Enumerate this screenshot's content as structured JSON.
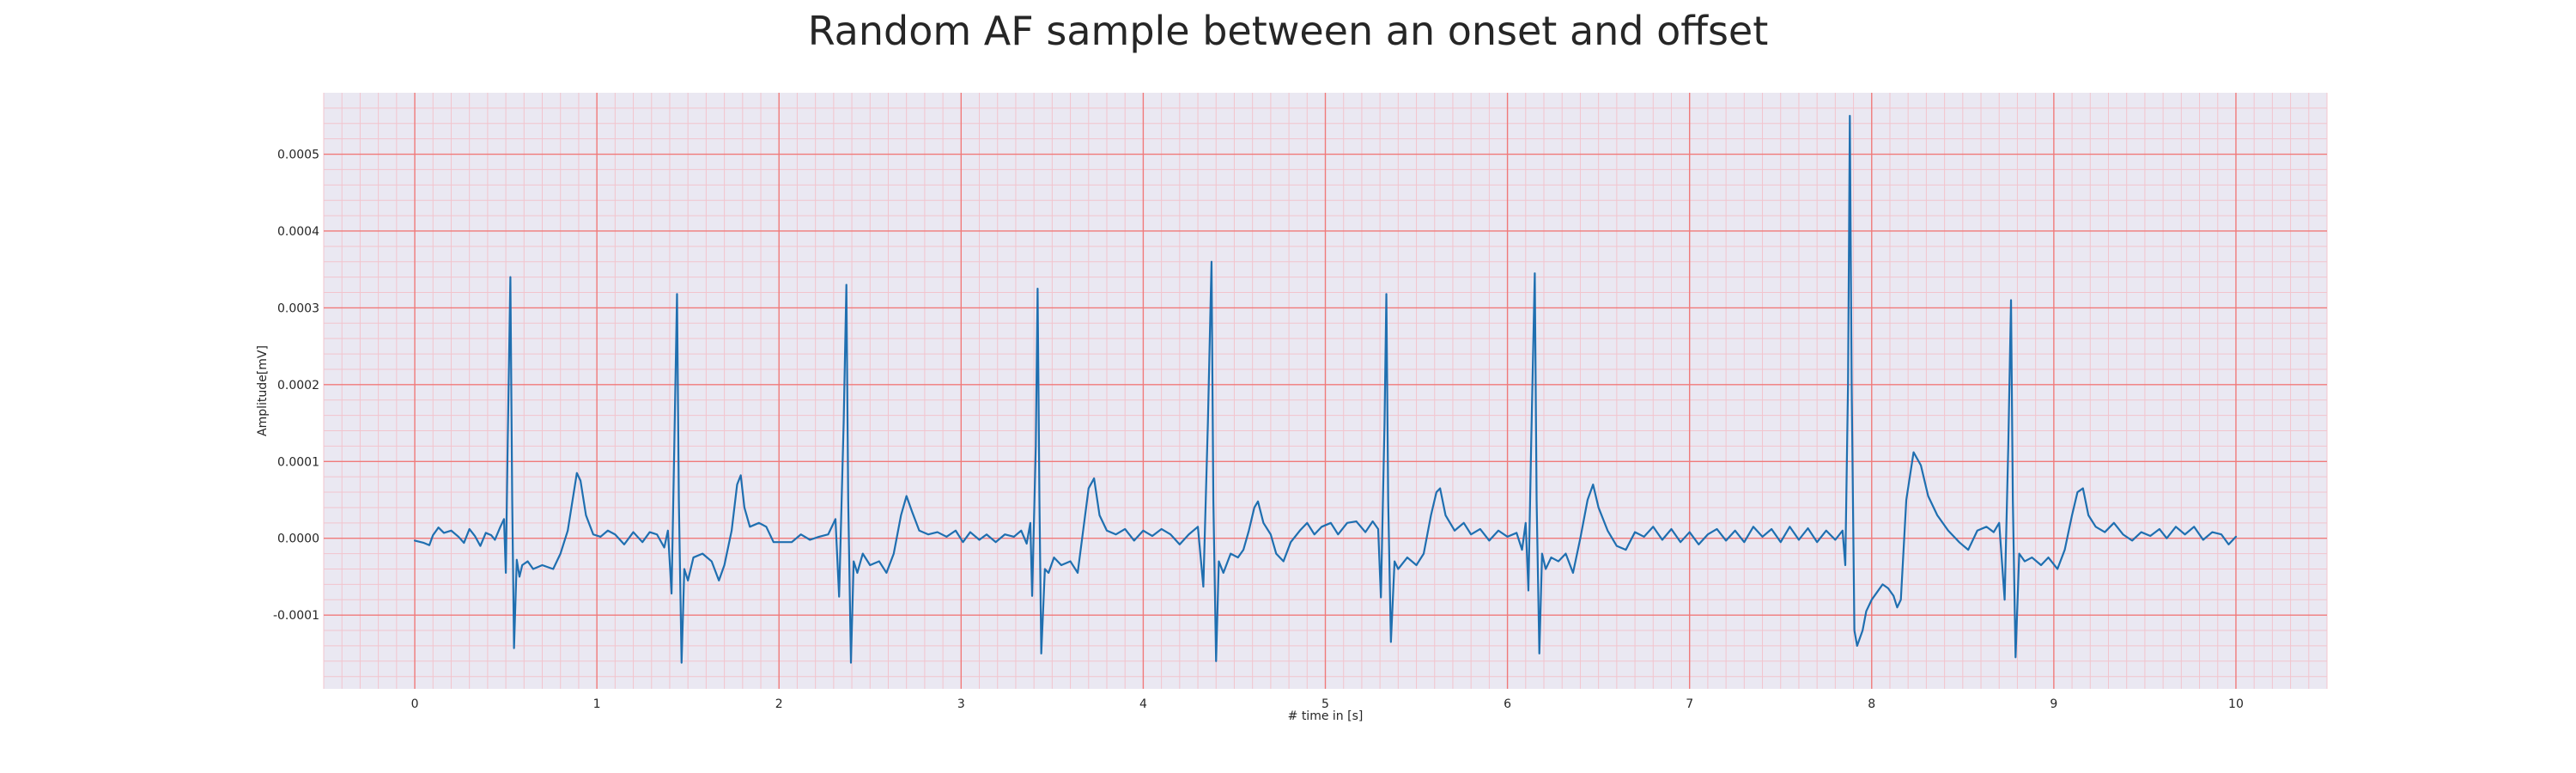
{
  "chart_data": {
    "type": "line",
    "title": "Random AF sample between an onset and offset",
    "xlabel": "# time in [s]",
    "ylabel": "Amplitude[mV]",
    "xlim": [
      -0.5,
      10.5
    ],
    "ylim": [
      -0.000196,
      0.00058
    ],
    "x_ticks": [
      0,
      1,
      2,
      3,
      4,
      5,
      6,
      7,
      8,
      9,
      10
    ],
    "x_tick_labels": [
      "0",
      "1",
      "2",
      "3",
      "4",
      "5",
      "6",
      "7",
      "8",
      "9",
      "10"
    ],
    "y_ticks": [
      -0.0001,
      0.0,
      0.0001,
      0.0002,
      0.0003,
      0.0004,
      0.0005
    ],
    "y_tick_labels": [
      "-0.0001",
      "0.0000",
      "0.0001",
      "0.0002",
      "0.0003",
      "0.0004",
      "0.0005"
    ],
    "grid": true,
    "legend": "none",
    "colors": {
      "line": "#1f6fb0",
      "plot_background": "#eae8f2",
      "major_grid": "#f07a7a",
      "minor_grid": "#f2c4cd",
      "text": "#262626"
    },
    "series": [
      {
        "values": [
          [
            0.0,
            -3e-06
          ],
          [
            0.05,
            -6e-06
          ],
          [
            0.08,
            -9e-06
          ],
          [
            0.1,
            4e-06
          ],
          [
            0.13,
            1.4e-05
          ],
          [
            0.16,
            7e-06
          ],
          [
            0.2,
            1e-05
          ],
          [
            0.24,
            2e-06
          ],
          [
            0.27,
            -6e-06
          ],
          [
            0.3,
            1.2e-05
          ],
          [
            0.33,
            3e-06
          ],
          [
            0.36,
            -1e-05
          ],
          [
            0.39,
            7e-06
          ],
          [
            0.42,
            4e-06
          ],
          [
            0.44,
            -2e-06
          ],
          [
            0.47,
            1.5e-05
          ],
          [
            0.49,
            2.5e-05
          ],
          [
            0.5,
            -4.5e-05
          ],
          [
            0.51,
            0.00012
          ],
          [
            0.525,
            0.00034
          ],
          [
            0.535,
            5e-05
          ],
          [
            0.545,
            -0.000143
          ],
          [
            0.56,
            -2.8e-05
          ],
          [
            0.575,
            -5e-05
          ],
          [
            0.59,
            -3.5e-05
          ],
          [
            0.62,
            -3e-05
          ],
          [
            0.65,
            -4e-05
          ],
          [
            0.7,
            -3.5e-05
          ],
          [
            0.76,
            -4e-05
          ],
          [
            0.8,
            -2e-05
          ],
          [
            0.84,
            1e-05
          ],
          [
            0.87,
            5.5e-05
          ],
          [
            0.89,
            8.5e-05
          ],
          [
            0.91,
            7.5e-05
          ],
          [
            0.94,
            3e-05
          ],
          [
            0.98,
            5e-06
          ],
          [
            1.02,
            2e-06
          ],
          [
            1.06,
            1e-05
          ],
          [
            1.1,
            5e-06
          ],
          [
            1.15,
            -8e-06
          ],
          [
            1.2,
            8e-06
          ],
          [
            1.25,
            -5e-06
          ],
          [
            1.29,
            8e-06
          ],
          [
            1.33,
            5e-06
          ],
          [
            1.37,
            -1.2e-05
          ],
          [
            1.39,
            1e-05
          ],
          [
            1.41,
            -7.2e-05
          ],
          [
            1.425,
            0.00012
          ],
          [
            1.44,
            0.000318
          ],
          [
            1.45,
            5e-05
          ],
          [
            1.465,
            -0.000162
          ],
          [
            1.48,
            -4e-05
          ],
          [
            1.5,
            -5.5e-05
          ],
          [
            1.53,
            -2.5e-05
          ],
          [
            1.58,
            -2e-05
          ],
          [
            1.63,
            -3e-05
          ],
          [
            1.67,
            -5.5e-05
          ],
          [
            1.7,
            -3.5e-05
          ],
          [
            1.74,
            1e-05
          ],
          [
            1.77,
            7e-05
          ],
          [
            1.79,
            8.2e-05
          ],
          [
            1.81,
            4e-05
          ],
          [
            1.84,
            1.5e-05
          ],
          [
            1.89,
            2e-05
          ],
          [
            1.93,
            1.5e-05
          ],
          [
            1.97,
            -5e-06
          ],
          [
            2.02,
            -5e-06
          ],
          [
            2.07,
            -5e-06
          ],
          [
            2.12,
            5e-06
          ],
          [
            2.17,
            -2e-06
          ],
          [
            2.22,
            2e-06
          ],
          [
            2.27,
            5e-06
          ],
          [
            2.31,
            2.5e-05
          ],
          [
            2.33,
            -7.6e-05
          ],
          [
            2.355,
            0.00015
          ],
          [
            2.37,
            0.00033
          ],
          [
            2.38,
            5e-05
          ],
          [
            2.395,
            -0.000162
          ],
          [
            2.41,
            -3e-05
          ],
          [
            2.43,
            -4.5e-05
          ],
          [
            2.46,
            -2e-05
          ],
          [
            2.5,
            -3.5e-05
          ],
          [
            2.55,
            -3e-05
          ],
          [
            2.59,
            -4.5e-05
          ],
          [
            2.63,
            -2e-05
          ],
          [
            2.67,
            3e-05
          ],
          [
            2.7,
            5.5e-05
          ],
          [
            2.73,
            3.5e-05
          ],
          [
            2.77,
            1e-05
          ],
          [
            2.82,
            5e-06
          ],
          [
            2.87,
            8e-06
          ],
          [
            2.92,
            2e-06
          ],
          [
            2.97,
            1e-05
          ],
          [
            3.01,
            -5e-06
          ],
          [
            3.05,
            8e-06
          ],
          [
            3.1,
            -2e-06
          ],
          [
            3.14,
            5e-06
          ],
          [
            3.19,
            -5e-06
          ],
          [
            3.24,
            5e-06
          ],
          [
            3.29,
            2e-06
          ],
          [
            3.33,
            1e-05
          ],
          [
            3.36,
            -7e-06
          ],
          [
            3.38,
            2e-05
          ],
          [
            3.39,
            -7.5e-05
          ],
          [
            3.41,
            0.00012
          ],
          [
            3.42,
            0.000325
          ],
          [
            3.43,
            5e-05
          ],
          [
            3.44,
            -0.00015
          ],
          [
            3.46,
            -4e-05
          ],
          [
            3.48,
            -4.5e-05
          ],
          [
            3.51,
            -2.5e-05
          ],
          [
            3.55,
            -3.5e-05
          ],
          [
            3.6,
            -3e-05
          ],
          [
            3.64,
            -4.5e-05
          ],
          [
            3.67,
            1e-05
          ],
          [
            3.7,
            6.5e-05
          ],
          [
            3.73,
            7.8e-05
          ],
          [
            3.76,
            3e-05
          ],
          [
            3.8,
            1e-05
          ],
          [
            3.85,
            5e-06
          ],
          [
            3.9,
            1.2e-05
          ],
          [
            3.95,
            -3e-06
          ],
          [
            4.0,
            1e-05
          ],
          [
            4.05,
            3e-06
          ],
          [
            4.1,
            1.2e-05
          ],
          [
            4.15,
            5e-06
          ],
          [
            4.2,
            -8e-06
          ],
          [
            4.25,
            5e-06
          ],
          [
            4.3,
            1.5e-05
          ],
          [
            4.33,
            -6.3e-05
          ],
          [
            4.355,
            0.00015
          ],
          [
            4.375,
            0.00036
          ],
          [
            4.385,
            5e-05
          ],
          [
            4.4,
            -0.00016
          ],
          [
            4.415,
            -3e-05
          ],
          [
            4.44,
            -4.5e-05
          ],
          [
            4.48,
            -2e-05
          ],
          [
            4.52,
            -2.5e-05
          ],
          [
            4.55,
            -1.5e-05
          ],
          [
            4.58,
            1e-05
          ],
          [
            4.61,
            4e-05
          ],
          [
            4.63,
            4.8e-05
          ],
          [
            4.66,
            2e-05
          ],
          [
            4.7,
            5e-06
          ],
          [
            4.73,
            -2e-05
          ],
          [
            4.77,
            -3e-05
          ],
          [
            4.81,
            -5e-06
          ],
          [
            4.86,
            1e-05
          ],
          [
            4.9,
            2e-05
          ],
          [
            4.94,
            5e-06
          ],
          [
            4.98,
            1.5e-05
          ],
          [
            5.03,
            2e-05
          ],
          [
            5.07,
            5e-06
          ],
          [
            5.12,
            2e-05
          ],
          [
            5.17,
            2.2e-05
          ],
          [
            5.22,
            8e-06
          ],
          [
            5.26,
            2.2e-05
          ],
          [
            5.29,
            1.2e-05
          ],
          [
            5.305,
            -7.7e-05
          ],
          [
            5.325,
            0.00015
          ],
          [
            5.335,
            0.000318
          ],
          [
            5.345,
            5e-05
          ],
          [
            5.36,
            -0.000135
          ],
          [
            5.38,
            -3e-05
          ],
          [
            5.4,
            -4e-05
          ],
          [
            5.45,
            -2.5e-05
          ],
          [
            5.5,
            -3.5e-05
          ],
          [
            5.54,
            -2e-05
          ],
          [
            5.58,
            3e-05
          ],
          [
            5.61,
            6e-05
          ],
          [
            5.63,
            6.5e-05
          ],
          [
            5.66,
            3e-05
          ],
          [
            5.71,
            1e-05
          ],
          [
            5.76,
            2e-05
          ],
          [
            5.8,
            5e-06
          ],
          [
            5.85,
            1.2e-05
          ],
          [
            5.9,
            -3e-06
          ],
          [
            5.95,
            1e-05
          ],
          [
            6.0,
            2e-06
          ],
          [
            6.05,
            7e-06
          ],
          [
            6.08,
            -1.5e-05
          ],
          [
            6.1,
            2e-05
          ],
          [
            6.115,
            -6.8e-05
          ],
          [
            6.13,
            0.00012
          ],
          [
            6.15,
            0.000345
          ],
          [
            6.16,
            5e-05
          ],
          [
            6.175,
            -0.00015
          ],
          [
            6.19,
            -2e-05
          ],
          [
            6.21,
            -4e-05
          ],
          [
            6.24,
            -2.5e-05
          ],
          [
            6.28,
            -3e-05
          ],
          [
            6.32,
            -2e-05
          ],
          [
            6.36,
            -4.5e-05
          ],
          [
            6.4,
            0.0
          ],
          [
            6.44,
            5e-05
          ],
          [
            6.47,
            7e-05
          ],
          [
            6.5,
            4e-05
          ],
          [
            6.55,
            1e-05
          ],
          [
            6.6,
            -1e-05
          ],
          [
            6.65,
            -1.5e-05
          ],
          [
            6.7,
            8e-06
          ],
          [
            6.75,
            2e-06
          ],
          [
            6.8,
            1.5e-05
          ],
          [
            6.85,
            -2e-06
          ],
          [
            6.9,
            1.2e-05
          ],
          [
            6.95,
            -5e-06
          ],
          [
            7.0,
            8e-06
          ],
          [
            7.05,
            -8e-06
          ],
          [
            7.1,
            5e-06
          ],
          [
            7.15,
            1.2e-05
          ],
          [
            7.2,
            -3e-06
          ],
          [
            7.25,
            1e-05
          ],
          [
            7.3,
            -5e-06
          ],
          [
            7.35,
            1.5e-05
          ],
          [
            7.4,
            2e-06
          ],
          [
            7.45,
            1.2e-05
          ],
          [
            7.5,
            -5e-06
          ],
          [
            7.55,
            1.5e-05
          ],
          [
            7.6,
            -2e-06
          ],
          [
            7.65,
            1.3e-05
          ],
          [
            7.7,
            -5e-06
          ],
          [
            7.75,
            1e-05
          ],
          [
            7.8,
            -2e-06
          ],
          [
            7.84,
            1e-05
          ],
          [
            7.855,
            -3.5e-05
          ],
          [
            7.87,
            0.0002
          ],
          [
            7.88,
            0.00055
          ],
          [
            7.89,
            0.0002
          ],
          [
            7.905,
            -0.00012
          ],
          [
            7.92,
            -0.00014
          ],
          [
            7.95,
            -0.00012
          ],
          [
            7.97,
            -9.5e-05
          ],
          [
            8.0,
            -8e-05
          ],
          [
            8.03,
            -7e-05
          ],
          [
            8.06,
            -6e-05
          ],
          [
            8.09,
            -6.5e-05
          ],
          [
            8.12,
            -7.5e-05
          ],
          [
            8.14,
            -9e-05
          ],
          [
            8.16,
            -8e-05
          ],
          [
            8.19,
            5e-05
          ],
          [
            8.23,
            0.000112
          ],
          [
            8.27,
            9.5e-05
          ],
          [
            8.31,
            5.5e-05
          ],
          [
            8.36,
            3e-05
          ],
          [
            8.42,
            1e-05
          ],
          [
            8.48,
            -5e-06
          ],
          [
            8.53,
            -1.5e-05
          ],
          [
            8.58,
            1e-05
          ],
          [
            8.63,
            1.5e-05
          ],
          [
            8.67,
            8e-06
          ],
          [
            8.7,
            2e-05
          ],
          [
            8.73,
            -8e-05
          ],
          [
            8.75,
            0.00012
          ],
          [
            8.765,
            0.00031
          ],
          [
            8.775,
            5e-05
          ],
          [
            8.79,
            -0.000155
          ],
          [
            8.81,
            -2e-05
          ],
          [
            8.84,
            -3e-05
          ],
          [
            8.88,
            -2.5e-05
          ],
          [
            8.93,
            -3.5e-05
          ],
          [
            8.97,
            -2.5e-05
          ],
          [
            9.02,
            -4e-05
          ],
          [
            9.06,
            -1.5e-05
          ],
          [
            9.1,
            3e-05
          ],
          [
            9.13,
            6e-05
          ],
          [
            9.16,
            6.5e-05
          ],
          [
            9.19,
            3e-05
          ],
          [
            9.23,
            1.5e-05
          ],
          [
            9.28,
            8e-06
          ],
          [
            9.33,
            2e-05
          ],
          [
            9.38,
            5e-06
          ],
          [
            9.43,
            -3e-06
          ],
          [
            9.48,
            8e-06
          ],
          [
            9.53,
            3e-06
          ],
          [
            9.58,
            1.2e-05
          ],
          [
            9.62,
            0.0
          ],
          [
            9.67,
            1.5e-05
          ],
          [
            9.72,
            5e-06
          ],
          [
            9.77,
            1.5e-05
          ],
          [
            9.82,
            -2e-06
          ],
          [
            9.87,
            8e-06
          ],
          [
            9.92,
            5e-06
          ],
          [
            9.96,
            -8e-06
          ],
          [
            10.0,
            2e-06
          ]
        ]
      }
    ]
  }
}
